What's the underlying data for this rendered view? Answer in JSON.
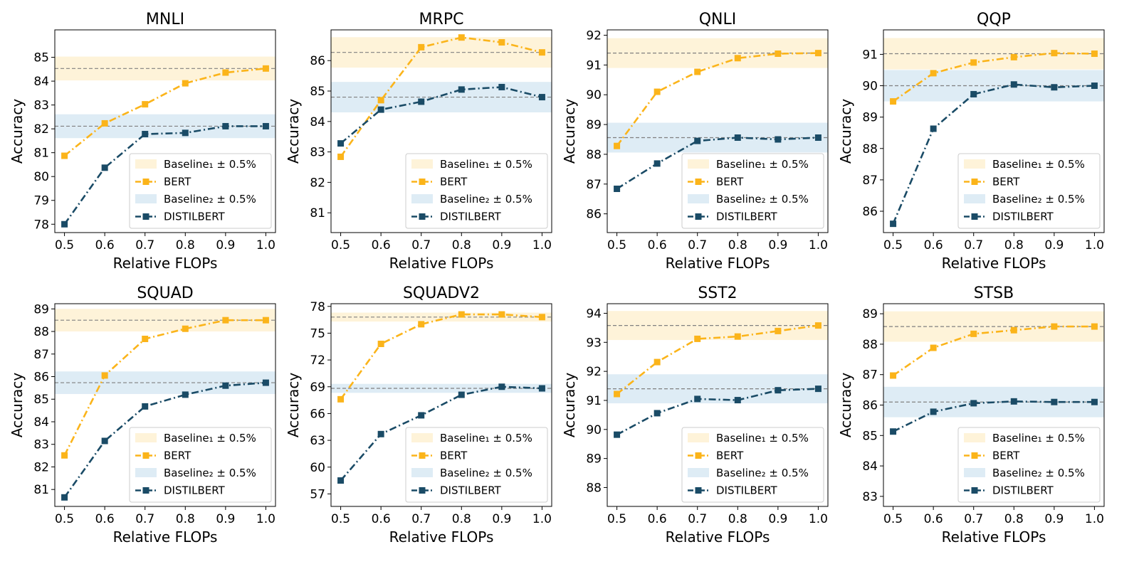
{
  "colors": {
    "bert": "#fbb41a",
    "distilbert": "#1a4b66",
    "band1": "#fef3d9",
    "band2": "#deecf5",
    "baseline_line": "#808080"
  },
  "chart_data": [
    {
      "type": "line",
      "title": "MNLI",
      "xlabel": "Relative FLOPs",
      "ylabel": "Accuracy",
      "x": [
        0.5,
        0.6,
        0.7,
        0.8,
        0.9,
        1.0
      ],
      "xticks": [
        "0.5",
        "0.6",
        "0.7",
        "0.8",
        "0.9",
        "1.0"
      ],
      "ylim": [
        77.65,
        86.15
      ],
      "yticks": [
        "78",
        "79",
        "80",
        "81",
        "82",
        "83",
        "84",
        "85"
      ],
      "baseline1": 84.53,
      "baseline2": 82.11,
      "series": [
        {
          "name": "BERT",
          "values": [
            80.87,
            82.23,
            83.03,
            83.91,
            84.36,
            84.53
          ]
        },
        {
          "name": "DISTILBERT",
          "values": [
            78.0,
            80.37,
            81.78,
            81.83,
            82.11,
            82.11
          ]
        }
      ],
      "legend": [
        "Baseline₁ ± 0.5%",
        "BERT",
        "Baseline₂ ± 0.5%",
        "DISTILBERT"
      ]
    },
    {
      "type": "line",
      "title": "MRPC",
      "xlabel": "Relative FLOPs",
      "ylabel": "Accuracy",
      "x": [
        0.5,
        0.6,
        0.7,
        0.8,
        0.9,
        1.0
      ],
      "xticks": [
        "0.5",
        "0.6",
        "0.7",
        "0.8",
        "0.9",
        "1.0"
      ],
      "ylim": [
        80.35,
        87.01
      ],
      "yticks": [
        "81",
        "82",
        "83",
        "84",
        "85",
        "86"
      ],
      "baseline1": 86.27,
      "baseline2": 84.8,
      "series": [
        {
          "name": "BERT",
          "values": [
            82.84,
            84.7,
            86.44,
            86.76,
            86.6,
            86.27
          ]
        },
        {
          "name": "DISTILBERT",
          "values": [
            83.28,
            84.39,
            84.65,
            85.05,
            85.13,
            84.8
          ]
        }
      ],
      "legend": [
        "Baseline₁ ± 0.5%",
        "BERT",
        "Baseline₂ ± 0.5%",
        "DISTILBERT"
      ]
    },
    {
      "type": "line",
      "title": "QNLI",
      "xlabel": "Relative FLOPs",
      "ylabel": "Accuracy",
      "x": [
        0.5,
        0.6,
        0.7,
        0.8,
        0.9,
        1.0
      ],
      "xticks": [
        "0.5",
        "0.6",
        "0.7",
        "0.8",
        "0.9",
        "1.0"
      ],
      "ylim": [
        85.37,
        92.18
      ],
      "yticks": [
        "86",
        "87",
        "88",
        "89",
        "90",
        "91",
        "92"
      ],
      "baseline1": 91.4,
      "baseline2": 88.56,
      "series": [
        {
          "name": "BERT",
          "values": [
            88.28,
            90.1,
            90.77,
            91.23,
            91.38,
            91.4
          ]
        },
        {
          "name": "DISTILBERT",
          "values": [
            86.84,
            87.69,
            88.45,
            88.56,
            88.5,
            88.56
          ]
        }
      ],
      "legend": [
        "Baseline₁ ± 0.5%",
        "BERT",
        "Baseline₂ ± 0.5%",
        "DISTILBERT"
      ]
    },
    {
      "type": "line",
      "title": "QQP",
      "xlabel": "Relative FLOPs",
      "ylabel": "Accuracy",
      "x": [
        0.5,
        0.6,
        0.7,
        0.8,
        0.9,
        1.0
      ],
      "xticks": [
        "0.5",
        "0.6",
        "0.7",
        "0.8",
        "0.9",
        "1.0"
      ],
      "ylim": [
        85.32,
        91.78
      ],
      "yticks": [
        "86",
        "87",
        "88",
        "89",
        "90",
        "91"
      ],
      "baseline1": 91.02,
      "baseline2": 90.0,
      "series": [
        {
          "name": "BERT",
          "values": [
            89.5,
            90.4,
            90.74,
            90.91,
            91.04,
            91.02
          ]
        },
        {
          "name": "DISTILBERT",
          "values": [
            85.6,
            88.63,
            89.73,
            90.04,
            89.95,
            90.0
          ]
        }
      ],
      "legend": [
        "Baseline₁ ± 0.5%",
        "BERT",
        "Baseline₂ ± 0.5%",
        "DISTILBERT"
      ]
    },
    {
      "type": "line",
      "title": "SQUAD",
      "xlabel": "Relative FLOPs",
      "ylabel": "Accuracy",
      "x": [
        0.5,
        0.6,
        0.7,
        0.8,
        0.9,
        1.0
      ],
      "xticks": [
        "0.5",
        "0.6",
        "0.7",
        "0.8",
        "0.9",
        "1.0"
      ],
      "ylim": [
        80.25,
        89.23
      ],
      "yticks": [
        "81",
        "82",
        "83",
        "84",
        "85",
        "86",
        "87",
        "88",
        "89"
      ],
      "baseline1": 88.5,
      "baseline2": 85.73,
      "series": [
        {
          "name": "BERT",
          "values": [
            82.51,
            86.05,
            87.67,
            88.12,
            88.5,
            88.5
          ]
        },
        {
          "name": "DISTILBERT",
          "values": [
            80.65,
            83.15,
            84.68,
            85.2,
            85.6,
            85.73
          ]
        }
      ],
      "legend": [
        "Baseline₁ ± 0.5%",
        "BERT",
        "Baseline₂ ± 0.5%",
        "DISTILBERT"
      ]
    },
    {
      "type": "line",
      "title": "SQUADV2",
      "xlabel": "Relative FLOPs",
      "ylabel": "Accuracy",
      "x": [
        0.5,
        0.6,
        0.7,
        0.8,
        0.9,
        1.0
      ],
      "xticks": [
        "0.5",
        "0.6",
        "0.7",
        "0.8",
        "0.9",
        "1.0"
      ],
      "ylim": [
        55.6,
        78.3
      ],
      "yticks": [
        "57",
        "60",
        "63",
        "66",
        "69",
        "72",
        "75",
        "78"
      ],
      "baseline1": 76.8,
      "baseline2": 68.82,
      "series": [
        {
          "name": "BERT",
          "values": [
            67.6,
            73.8,
            76.0,
            77.1,
            77.1,
            76.8
          ]
        },
        {
          "name": "DISTILBERT",
          "values": [
            58.5,
            63.7,
            65.8,
            68.1,
            69.0,
            68.82
          ]
        }
      ],
      "legend": [
        "Baseline₁ ± 0.5%",
        "BERT",
        "Baseline₂ ± 0.5%",
        "DISTILBERT"
      ]
    },
    {
      "type": "line",
      "title": "SST2",
      "xlabel": "Relative FLOPs",
      "ylabel": "Accuracy",
      "x": [
        0.5,
        0.6,
        0.7,
        0.8,
        0.9,
        1.0
      ],
      "xticks": [
        "0.5",
        "0.6",
        "0.7",
        "0.8",
        "0.9",
        "1.0"
      ],
      "ylim": [
        87.35,
        94.33
      ],
      "yticks": [
        "88",
        "89",
        "90",
        "91",
        "92",
        "93",
        "94"
      ],
      "baseline1": 93.58,
      "baseline2": 91.4,
      "series": [
        {
          "name": "BERT",
          "values": [
            91.22,
            92.32,
            93.12,
            93.2,
            93.39,
            93.58
          ]
        },
        {
          "name": "DISTILBERT",
          "values": [
            89.82,
            90.56,
            91.05,
            91.01,
            91.35,
            91.4
          ]
        }
      ],
      "legend": [
        "Baseline₁ ± 0.5%",
        "BERT",
        "Baseline₂ ± 0.5%",
        "DISTILBERT"
      ]
    },
    {
      "type": "line",
      "title": "STSB",
      "xlabel": "Relative FLOPs",
      "ylabel": "Accuracy",
      "x": [
        0.5,
        0.6,
        0.7,
        0.8,
        0.9,
        1.0
      ],
      "xticks": [
        "0.5",
        "0.6",
        "0.7",
        "0.8",
        "0.9",
        "1.0"
      ],
      "ylim": [
        82.67,
        89.33
      ],
      "yticks": [
        "83",
        "84",
        "85",
        "86",
        "87",
        "88",
        "89"
      ],
      "baseline1": 88.58,
      "baseline2": 86.1,
      "series": [
        {
          "name": "BERT",
          "values": [
            86.97,
            87.88,
            88.34,
            88.46,
            88.58,
            88.58
          ]
        },
        {
          "name": "DISTILBERT",
          "values": [
            85.13,
            85.78,
            86.06,
            86.12,
            86.1,
            86.1
          ]
        }
      ],
      "legend": [
        "Baseline₁ ± 0.5%",
        "BERT",
        "Baseline₂ ± 0.5%",
        "DISTILBERT"
      ]
    }
  ]
}
